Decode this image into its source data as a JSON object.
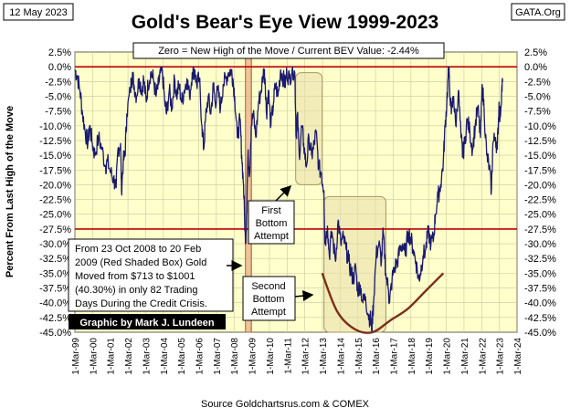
{
  "header": {
    "date": "12 May 2023",
    "title": "Gold's Bear's Eye View 1999-2023",
    "site": "GATA.Org",
    "bev_note": "Zero = New High of the Move / Current BEV Value:  -2.44%",
    "source": "Source Goldchartsrus.com  & COMEX"
  },
  "annotations": {
    "first_bottom": [
      "First",
      "Bottom",
      "Attempt"
    ],
    "second_bottom": [
      "Second",
      "Bottom",
      "Attempt"
    ],
    "credit_crisis": [
      "From 23 Oct 2008 to 20 Feb",
      "2009  (Red Shaded Box)  Gold",
      "Moved from $713  to $1001",
      "(40.30%)  in only 82 Trading",
      "Days During the Credit Crisis."
    ],
    "credit": "Graphic by Mark J. Lundeen"
  },
  "colors": {
    "plot_bg": "#ffffcc",
    "series": "#1a1a6e",
    "reference_lines": "#c00000",
    "bowl": "#7a2e1c",
    "box_fill": "#e8dca8",
    "shaded_box": "#e8b08a"
  },
  "chart_data": {
    "type": "line",
    "title": "Gold's Bear's Eye View 1999-2023",
    "ylabel": "Percent From Last High of the Move",
    "xlabel": "",
    "ylim": [
      -45,
      2.5
    ],
    "xlim": [
      1999.166,
      2024.166
    ],
    "yticks": [
      2.5,
      0,
      -2.5,
      -5,
      -7.5,
      -10,
      -12.5,
      -15,
      -17.5,
      -20,
      -22.5,
      -25,
      -27.5,
      -30,
      -32.5,
      -35,
      -37.5,
      -40,
      -42.5,
      -45
    ],
    "ytick_labels": [
      "2.5%",
      "0.0%",
      "-2.5%",
      "-5.0%",
      "-7.5%",
      "-10.0%",
      "-12.5%",
      "-15.0%",
      "-17.5%",
      "-20.0%",
      "-22.5%",
      "-25.0%",
      "-27.5%",
      "-30.0%",
      "-32.5%",
      "-35.0%",
      "-37.5%",
      "-40.0%",
      "-42.5%",
      "-45.0%"
    ],
    "xtick_labels": [
      "1-Mar-99",
      "1-Mar-00",
      "1-Mar-01",
      "1-Mar-02",
      "1-Mar-03",
      "1-Mar-04",
      "1-Mar-05",
      "1-Mar-06",
      "1-Mar-07",
      "1-Mar-08",
      "1-Mar-09",
      "1-Mar-10",
      "1-Mar-11",
      "1-Mar-12",
      "1-Mar-13",
      "1-Mar-14",
      "1-Mar-15",
      "1-Mar-16",
      "1-Mar-17",
      "1-Mar-18",
      "1-Mar-19",
      "1-Mar-20",
      "1-Mar-21",
      "1-Mar-22",
      "1-Mar-23",
      "1-Mar-24"
    ],
    "reference_lines": [
      0,
      -27.5
    ],
    "current_value": -2.44,
    "series": [
      {
        "name": "Gold BEV",
        "x": [
          1999.17,
          1999.3,
          1999.45,
          1999.6,
          1999.75,
          1999.9,
          2000.0,
          2000.15,
          2000.3,
          2000.5,
          2000.7,
          2000.9,
          2001.0,
          2001.2,
          2001.35,
          2001.5,
          2001.6,
          2001.75,
          2001.8,
          2001.9,
          2002.0,
          2002.1,
          2002.3,
          2002.42,
          2002.5,
          2002.65,
          2002.8,
          2002.95,
          2003.05,
          2003.2,
          2003.3,
          2003.45,
          2003.6,
          2003.75,
          2003.9,
          2004.0,
          2004.1,
          2004.25,
          2004.35,
          2004.5,
          2004.65,
          2004.8,
          2004.92,
          2005.05,
          2005.2,
          2005.35,
          2005.5,
          2005.65,
          2005.8,
          2005.95,
          2006.05,
          2006.2,
          2006.35,
          2006.45,
          2006.55,
          2006.7,
          2006.85,
          2007.0,
          2007.1,
          2007.25,
          2007.4,
          2007.55,
          2007.7,
          2007.85,
          2008.0,
          2008.1,
          2008.2,
          2008.35,
          2008.5,
          2008.6,
          2008.7,
          2008.81,
          2008.87,
          2008.95,
          2009.05,
          2009.14,
          2009.25,
          2009.4,
          2009.55,
          2009.7,
          2009.85,
          2009.92,
          2010.0,
          2010.1,
          2010.25,
          2010.4,
          2010.5,
          2010.65,
          2010.8,
          2010.95,
          2011.05,
          2011.15,
          2011.3,
          2011.45,
          2011.6,
          2011.68,
          2011.75,
          2011.85,
          2012.0,
          2012.1,
          2012.25,
          2012.4,
          2012.55,
          2012.65,
          2012.8,
          2012.95,
          2013.1,
          2013.25,
          2013.3,
          2013.45,
          2013.55,
          2013.7,
          2013.9,
          2014.05,
          2014.2,
          2014.35,
          2014.5,
          2014.65,
          2014.8,
          2014.9,
          2015.05,
          2015.15,
          2015.3,
          2015.45,
          2015.6,
          2015.75,
          2015.9,
          2015.95,
          2016.05,
          2016.2,
          2016.35,
          2016.5,
          2016.6,
          2016.75,
          2016.9,
          2016.96,
          2017.1,
          2017.25,
          2017.4,
          2017.55,
          2017.7,
          2017.85,
          2018.0,
          2018.15,
          2018.3,
          2018.45,
          2018.6,
          2018.7,
          2018.85,
          2019.0,
          2019.15,
          2019.3,
          2019.45,
          2019.55,
          2019.7,
          2019.85,
          2020.0,
          2020.1,
          2020.2,
          2020.3,
          2020.45,
          2020.58,
          2020.7,
          2020.85,
          2021.0,
          2021.1,
          2021.2,
          2021.35,
          2021.5,
          2021.65,
          2021.8,
          2021.95,
          2022.1,
          2022.2,
          2022.3,
          2022.45,
          2022.6,
          2022.72,
          2022.8,
          2022.95,
          2023.05,
          2023.15,
          2023.2,
          2023.3,
          2023.36
        ],
        "values": [
          -0.5,
          -1.5,
          -4,
          -8,
          -11,
          -13,
          -10,
          -13,
          -15,
          -12,
          -14,
          -17,
          -16,
          -18,
          -19,
          -20.5,
          -14,
          -13,
          -21,
          -16,
          -15,
          -8,
          -4,
          -1,
          -3,
          -5,
          -2,
          -4,
          -2,
          -6,
          -3,
          -1,
          -2,
          -5,
          -3,
          -1,
          -0.5,
          -6,
          -8,
          -4,
          -7,
          -2,
          -5,
          -3,
          -6,
          -4,
          -2,
          -5,
          -1,
          -0.5,
          -3,
          -2,
          -10,
          -14,
          -9,
          -5,
          -8,
          -3,
          -6,
          -4,
          -7,
          -3,
          -2,
          -1,
          -0.5,
          -2,
          -5,
          -12,
          -9,
          -15,
          -20,
          -30,
          -25,
          -15,
          -18,
          -10,
          -8,
          -12,
          -6,
          -4,
          -0.5,
          -2,
          -8,
          -4,
          -10,
          -6,
          -3,
          -5,
          -0.5,
          -2,
          -3,
          -1,
          -2,
          -0.5,
          -1,
          -12,
          -8,
          -15,
          -10,
          -13,
          -17,
          -12,
          -15,
          -14,
          -11,
          -17,
          -18,
          -21,
          -30,
          -27,
          -32,
          -28,
          -33,
          -26,
          -30,
          -29,
          -31,
          -33,
          -35,
          -36,
          -34,
          -38,
          -37,
          -40,
          -39,
          -42,
          -43,
          -44.5,
          -40,
          -32,
          -30,
          -33,
          -28,
          -35,
          -38,
          -40,
          -36,
          -34,
          -33,
          -31,
          -30,
          -32,
          -28,
          -29,
          -31,
          -33,
          -36,
          -35,
          -32,
          -31,
          -28,
          -30,
          -29,
          -25,
          -22,
          -20,
          -16,
          -10,
          -6,
          0,
          -8,
          -5,
          -10,
          -4,
          -12,
          -15,
          -13,
          -9,
          -11,
          -14,
          -10,
          -7,
          -12,
          -3,
          -7,
          -15,
          -17,
          -21,
          -13,
          -12,
          -14,
          -6,
          -9,
          -4,
          -2.44
        ]
      }
    ],
    "highlight_boxes": [
      {
        "label": "credit crisis (red shaded box)",
        "x": [
          2008.81,
          2009.14
        ],
        "y": [
          2.5,
          -45
        ]
      },
      {
        "label": "first bottom attempt",
        "x": [
          2011.65,
          2013.15
        ],
        "y": [
          -1,
          -20
        ]
      },
      {
        "label": "second bottom attempt",
        "x": [
          2013.25,
          2016.75
        ],
        "y": [
          -22,
          -45
        ]
      }
    ],
    "bowl_curve": {
      "x": [
        2013.15,
        2014.0,
        2015.0,
        2016.0,
        2017.0,
        2018.0,
        2019.0,
        2020.0
      ],
      "y": [
        -35,
        -41.5,
        -44.5,
        -45,
        -43,
        -41,
        -38,
        -35
      ]
    }
  }
}
